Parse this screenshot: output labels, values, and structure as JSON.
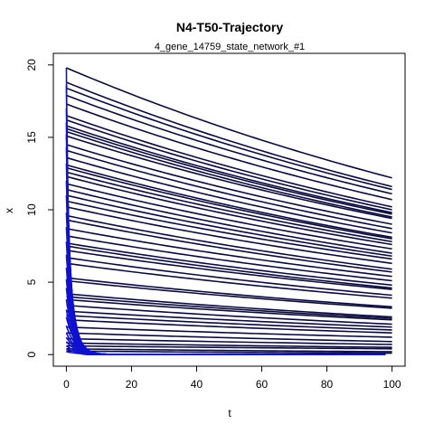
{
  "chart_data": {
    "type": "line",
    "title": "N4-T50-Trajectory",
    "subtitle": "4_gene_14759_state_network_#1",
    "xlabel": "t",
    "ylabel": "x",
    "xlim": [
      -4,
      104
    ],
    "ylim": [
      -0.8,
      20.8
    ],
    "x_ticks": [
      0,
      20,
      40,
      60,
      80,
      100
    ],
    "y_ticks": [
      0,
      5,
      10,
      15,
      20
    ],
    "grid": false,
    "legend": "none",
    "colors": {
      "slow_decay": "#0b0b3b",
      "fast_decay": "#1010d0"
    },
    "slow_series": {
      "description_of_form": "x(t) = x0 * exp(-k t)",
      "x0": [
        19.8,
        18.8,
        18.4,
        17.9,
        17.3,
        16.5,
        16.2,
        15.8,
        15.6,
        15.4,
        15.1,
        14.5,
        14.1,
        13.6,
        13.1,
        12.9,
        12.6,
        12.3,
        11.8,
        11.4,
        11.0,
        10.6,
        10.2,
        9.6,
        9.3,
        8.7,
        8.2,
        7.7,
        7.5,
        7.2,
        6.7,
        6.3,
        5.3,
        5.1,
        4.2,
        4.0,
        3.8,
        3.4,
        3.0,
        2.7,
        2.4,
        1.9,
        1.5,
        1.1,
        0.8,
        0.6,
        0.4,
        0.25
      ],
      "x100": [
        12.2,
        11.6,
        11.4,
        11.1,
        10.7,
        10.2,
        10.0,
        9.8,
        9.7,
        9.5,
        9.4,
        9.0,
        8.7,
        8.4,
        8.1,
        8.0,
        7.8,
        7.6,
        7.3,
        7.0,
        6.8,
        6.6,
        6.3,
        5.9,
        5.7,
        5.4,
        5.1,
        4.8,
        4.6,
        4.5,
        4.1,
        3.9,
        3.3,
        3.2,
        2.6,
        2.5,
        2.4,
        2.1,
        1.9,
        1.7,
        1.5,
        1.2,
        0.9,
        0.7,
        0.5,
        0.4,
        0.2,
        0.1
      ]
    },
    "fast_series": {
      "description_of_form": "x(t) = x0 * exp(-k t)",
      "x0": [
        19.8,
        18.6,
        17.0,
        16.0,
        15.2,
        14.3,
        13.2,
        12.0,
        11.0,
        9.8,
        8.8,
        7.8,
        6.9,
        6.0,
        5.2,
        4.6,
        3.8,
        3.1,
        2.6,
        2.0,
        1.5,
        1.2,
        0.9,
        0.6,
        0.4,
        0.2
      ],
      "k": [
        1.25,
        1.1,
        0.95,
        0.85,
        0.75,
        0.7,
        0.65,
        0.6,
        0.55,
        0.52,
        0.5,
        0.48,
        0.46,
        0.45,
        0.44,
        0.42,
        0.4,
        0.38,
        0.36,
        0.35,
        0.33,
        0.32,
        0.3,
        0.28,
        0.26,
        0.25
      ]
    }
  }
}
